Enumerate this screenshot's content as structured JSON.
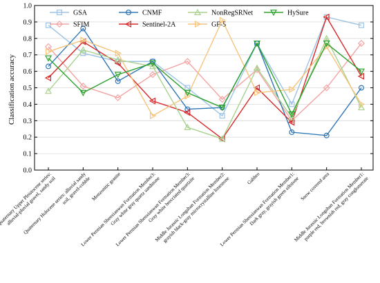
{
  "chart_data": {
    "type": "line",
    "ylabel": "Classification accuracy",
    "xlabel": "",
    "title": "",
    "ylim": [
      0.0,
      1.0
    ],
    "yticks": [
      "0.0",
      "0.1",
      "0.2",
      "0.3",
      "0.4",
      "0.5",
      "0.6",
      "0.7",
      "0.8",
      "0.9",
      "1.0"
    ],
    "grid": true,
    "legend_position": "top",
    "categories": [
      [
        "Quaternary Upper Pleistocene series:",
        "alluvial-pluvial gravel, sandy soil"
      ],
      [
        "Quaternary Holocene series: alluvial sandy",
        "soil, gravel-cobble"
      ],
      [
        "Monzonitic granite"
      ],
      [
        "Lower Permian Shenxianwan Formation Member3:",
        "Gray white gray quartz sandstone"
      ],
      [
        "Lower Permian Shenxianwan Formation Member3:",
        "Gray white brecciated quartzite"
      ],
      [
        "Middle Jurassic Longshan Formation Member2:",
        "grayish black-gray microcrystalline limestone"
      ],
      [
        "Gabbro"
      ],
      [
        "Lower Permian Shenxianwan Formation Member1:",
        "Dark gray, grayish green siltstone"
      ],
      [
        "Snow covered area"
      ],
      [
        "Middle Jurassic Longshan Formation Member1:",
        "purple red, brownish red, gray conglomerate"
      ]
    ],
    "series": [
      {
        "name": "GSA",
        "color": "#9cc3e5",
        "marker": "square",
        "values": [
          0.88,
          0.71,
          0.66,
          0.66,
          0.5,
          0.33,
          0.77,
          0.4,
          0.93,
          0.88
        ]
      },
      {
        "name": "SFIM",
        "color": "#f4a3a3",
        "marker": "diamond",
        "values": [
          0.75,
          0.51,
          0.44,
          0.58,
          0.66,
          0.43,
          0.61,
          0.3,
          0.5,
          0.77
        ]
      },
      {
        "name": "CNMF",
        "color": "#2e75b6",
        "marker": "circle",
        "values": [
          0.63,
          0.86,
          0.54,
          0.66,
          0.37,
          0.38,
          0.77,
          0.23,
          0.21,
          0.5
        ]
      },
      {
        "name": "Sentinel-2A",
        "color": "#d62828",
        "marker": "triangle-left",
        "values": [
          0.56,
          0.78,
          0.65,
          0.42,
          0.35,
          0.19,
          0.5,
          0.29,
          0.93,
          0.57
        ]
      },
      {
        "name": "NonRegSRNet",
        "color": "#a9d18e",
        "marker": "triangle-up",
        "values": [
          0.48,
          0.73,
          0.67,
          0.63,
          0.26,
          0.19,
          0.62,
          0.32,
          0.8,
          0.38
        ]
      },
      {
        "name": "GF-5",
        "color": "#f7c37a",
        "marker": "triangle-right",
        "values": [
          0.72,
          0.79,
          0.71,
          0.33,
          0.45,
          0.91,
          0.47,
          0.49,
          0.75,
          0.4
        ]
      },
      {
        "name": "HySure",
        "color": "#2ca02c",
        "marker": "triangle-down",
        "values": [
          0.68,
          0.47,
          0.58,
          0.65,
          0.47,
          0.38,
          0.77,
          0.34,
          0.77,
          0.6
        ]
      }
    ]
  }
}
